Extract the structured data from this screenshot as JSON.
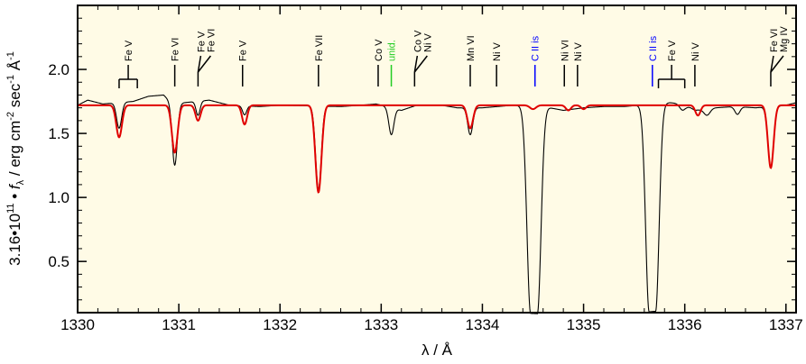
{
  "chart_data": {
    "type": "line",
    "title": "",
    "xlabel": "λ / Å",
    "ylabel_parts": {
      "factor": "3.16•10",
      "factor_exp": "11",
      "bullet": " • ",
      "f": "f",
      "f_sub": "λ",
      "units_a": " / erg cm",
      "units_a_exp": "-2",
      "units_b": " sec",
      "units_b_exp": "-1",
      "units_c": " Å",
      "units_c_exp": "-1"
    },
    "xlim": [
      1330,
      1337.1
    ],
    "ylim": [
      0.1,
      2.5
    ],
    "xticks": [
      1330,
      1331,
      1332,
      1333,
      1334,
      1335,
      1336,
      1337
    ],
    "xtick_labels": [
      "1330",
      "1331",
      "1332",
      "1333",
      "1334",
      "1335",
      "1336",
      "1337"
    ],
    "yticks": [
      0.5,
      1.0,
      1.5,
      2.0
    ],
    "ytick_labels": [
      "0.5",
      "1.0",
      "1.5",
      "2.0"
    ],
    "background": "#fffbe6",
    "colors": {
      "observed": "#000000",
      "model": "#e00000",
      "ion_default": "#000000",
      "interstellar": "#0000ff",
      "unidentified": "#22cc22"
    },
    "series": [
      {
        "role": "observed",
        "continuum": 1.71,
        "noise": [
          [
            1330.0,
            1.72
          ],
          [
            1330.1,
            1.76
          ],
          [
            1330.25,
            1.73
          ],
          [
            1330.55,
            1.75
          ],
          [
            1330.7,
            1.79
          ],
          [
            1330.85,
            1.8
          ],
          [
            1330.95,
            1.72
          ],
          [
            1331.05,
            1.74
          ],
          [
            1331.3,
            1.76
          ],
          [
            1331.5,
            1.72
          ],
          [
            1331.8,
            1.71
          ],
          [
            1332.0,
            1.72
          ],
          [
            1332.6,
            1.71
          ],
          [
            1332.8,
            1.72
          ],
          [
            1332.95,
            1.73
          ],
          [
            1333.2,
            1.68
          ],
          [
            1333.35,
            1.72
          ],
          [
            1333.6,
            1.72
          ],
          [
            1333.75,
            1.7
          ],
          [
            1334.0,
            1.7
          ],
          [
            1334.3,
            1.72
          ],
          [
            1334.6,
            1.71
          ],
          [
            1334.8,
            1.68
          ],
          [
            1335.0,
            1.7
          ],
          [
            1335.2,
            1.71
          ],
          [
            1335.4,
            1.71
          ],
          [
            1335.85,
            1.74
          ],
          [
            1336.0,
            1.73
          ],
          [
            1336.1,
            1.68
          ],
          [
            1336.3,
            1.7
          ],
          [
            1336.5,
            1.71
          ],
          [
            1336.7,
            1.7
          ],
          [
            1337.0,
            1.72
          ],
          [
            1337.1,
            1.74
          ]
        ],
        "absorptions": [
          {
            "x": 1330.41,
            "depth": 0.2,
            "sigma": 0.025
          },
          {
            "x": 1330.96,
            "depth": 0.47,
            "sigma": 0.025
          },
          {
            "x": 1331.19,
            "depth": 0.11,
            "sigma": 0.02
          },
          {
            "x": 1331.65,
            "depth": 0.07,
            "sigma": 0.02
          },
          {
            "x": 1332.38,
            "depth": 0.65,
            "sigma": 0.028
          },
          {
            "x": 1333.1,
            "depth": 0.21,
            "sigma": 0.025
          },
          {
            "x": 1333.88,
            "depth": 0.21,
            "sigma": 0.025
          },
          {
            "x": 1334.51,
            "depth": 1.62,
            "sigma": 0.048,
            "flat": 0.7
          },
          {
            "x": 1335.68,
            "depth": 1.62,
            "sigma": 0.046,
            "flat": 0.7
          },
          {
            "x": 1335.98,
            "depth": 0.05,
            "sigma": 0.03
          },
          {
            "x": 1336.22,
            "depth": 0.05,
            "sigma": 0.03
          },
          {
            "x": 1336.52,
            "depth": 0.06,
            "sigma": 0.025
          },
          {
            "x": 1336.85,
            "depth": 0.48,
            "sigma": 0.028
          }
        ]
      },
      {
        "role": "model",
        "continuum": 1.72,
        "absorptions": [
          {
            "x": 1330.41,
            "depth": 0.25,
            "sigma": 0.028
          },
          {
            "x": 1330.96,
            "depth": 0.37,
            "sigma": 0.028
          },
          {
            "x": 1331.19,
            "depth": 0.12,
            "sigma": 0.025
          },
          {
            "x": 1331.65,
            "depth": 0.15,
            "sigma": 0.025
          },
          {
            "x": 1332.38,
            "depth": 0.68,
            "sigma": 0.03
          },
          {
            "x": 1333.88,
            "depth": 0.18,
            "sigma": 0.028
          },
          {
            "x": 1334.5,
            "depth": 0.03,
            "sigma": 0.03
          },
          {
            "x": 1334.85,
            "depth": 0.04,
            "sigma": 0.025
          },
          {
            "x": 1335.0,
            "depth": 0.03,
            "sigma": 0.025
          },
          {
            "x": 1336.13,
            "depth": 0.08,
            "sigma": 0.025
          },
          {
            "x": 1336.85,
            "depth": 0.49,
            "sigma": 0.028
          }
        ]
      }
    ],
    "line_ids": [
      {
        "label": "Fe V",
        "x": 1330.5,
        "kind": "bracket",
        "xs": [
          1330.41,
          1330.59
        ],
        "color": "ion_default"
      },
      {
        "label": "Fe VI",
        "x": 1330.96,
        "kind": "single",
        "color": "ion_default"
      },
      {
        "label": "Fe V",
        "x": 1331.19,
        "kind": "fork",
        "color": "ion_default"
      },
      {
        "label": "Fe VI",
        "x": 1331.19,
        "kind": "fork",
        "color": "ion_default"
      },
      {
        "label": "Fe V",
        "x": 1331.63,
        "kind": "single",
        "color": "ion_default"
      },
      {
        "label": "Fe VII",
        "x": 1332.38,
        "kind": "single",
        "color": "ion_default"
      },
      {
        "label": "Co V",
        "x": 1332.97,
        "kind": "single",
        "color": "ion_default"
      },
      {
        "label": "unid.",
        "x": 1333.1,
        "kind": "single",
        "color": "unidentified"
      },
      {
        "label": "Co V",
        "x": 1333.33,
        "kind": "fork",
        "color": "ion_default"
      },
      {
        "label": "Ni V",
        "x": 1333.33,
        "kind": "fork",
        "color": "ion_default"
      },
      {
        "label": "Mn VI",
        "x": 1333.88,
        "kind": "single",
        "color": "ion_default"
      },
      {
        "label": "Ni V",
        "x": 1334.14,
        "kind": "single",
        "color": "ion_default"
      },
      {
        "label": "C II is",
        "x": 1334.52,
        "kind": "single",
        "color": "interstellar"
      },
      {
        "label": "Ni VI",
        "x": 1334.81,
        "kind": "single",
        "color": "ion_default"
      },
      {
        "label": "Ni V",
        "x": 1334.94,
        "kind": "single",
        "color": "ion_default"
      },
      {
        "label": "C II is",
        "x": 1335.68,
        "kind": "single",
        "color": "interstellar"
      },
      {
        "label": "Fe V",
        "x": 1335.87,
        "kind": "bracket",
        "xs": [
          1335.74,
          1336.0
        ],
        "color": "ion_default"
      },
      {
        "label": "Ni V",
        "x": 1336.1,
        "kind": "single",
        "color": "ion_default"
      },
      {
        "label": "Fe VI",
        "x": 1336.85,
        "kind": "fork",
        "color": "ion_default"
      },
      {
        "label": "Mg IV",
        "x": 1336.85,
        "kind": "fork",
        "color": "ion_default"
      }
    ]
  }
}
